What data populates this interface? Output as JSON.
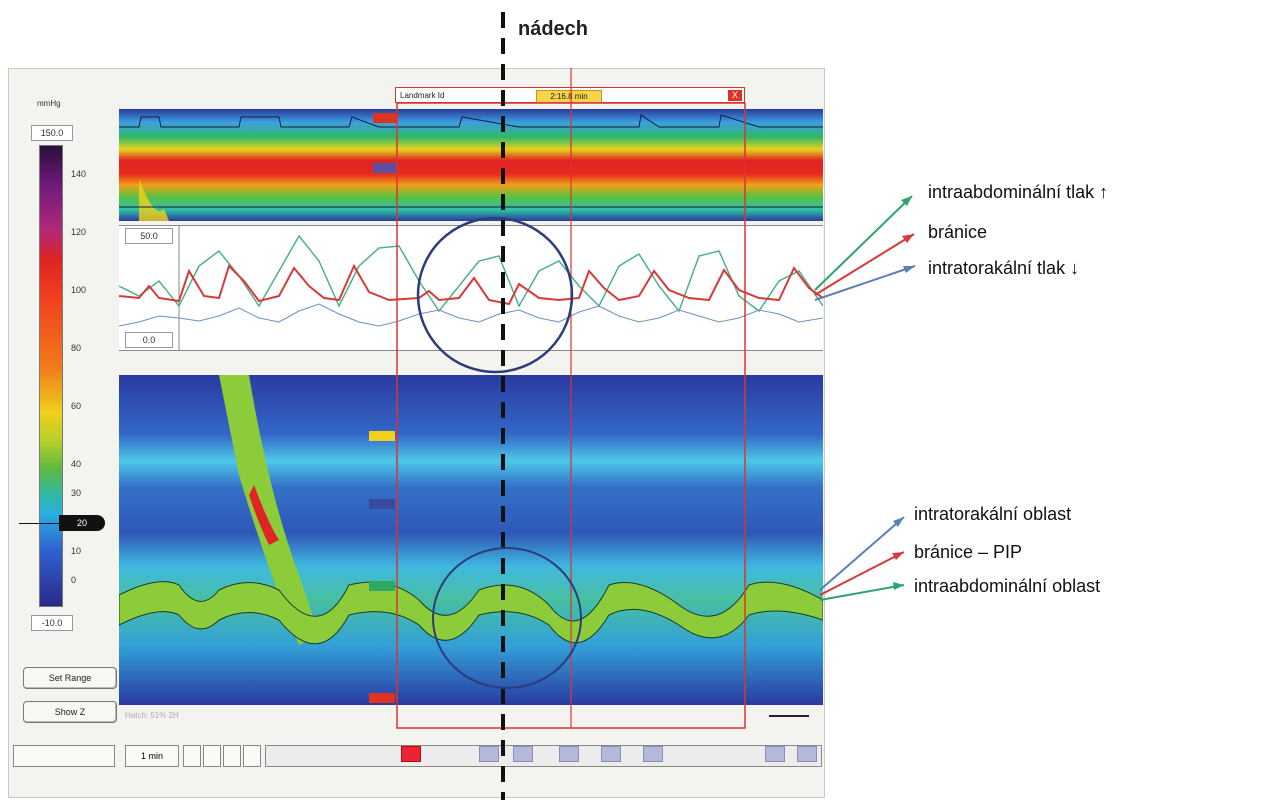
{
  "title": "nádech",
  "scale": {
    "unit": "mmHg",
    "max_box": "150.0",
    "min_box": "-10.0",
    "ticks": [
      "140",
      "120",
      "100",
      "80",
      "60",
      "40",
      "30",
      "20",
      "10",
      "0"
    ],
    "marker": "20"
  },
  "line_panel": {
    "max_box": "50.0",
    "min_box": "0.0"
  },
  "buttons": {
    "set_range": "Set Range",
    "show_z": "Show Z"
  },
  "landmark": {
    "label": "Landmark Id",
    "time": "2:16.8 min",
    "close": "X"
  },
  "status_text": "Hatch: 51% 2H",
  "toolbar": {
    "time_label": "1 min"
  },
  "annotations": {
    "line_panel": [
      "intraabdominální tlak ↑",
      "bránice",
      "intratorakální tlak ↓"
    ],
    "topo_panel": [
      "intratorakální oblast",
      "bránice – PIP",
      "intraabdominální oblast"
    ]
  },
  "colors": {
    "green_arrow": "#2ea36a",
    "red_arrow": "#d63a3a",
    "blue_arrow": "#5a7fb8",
    "circle": "#2d3c7a"
  }
}
